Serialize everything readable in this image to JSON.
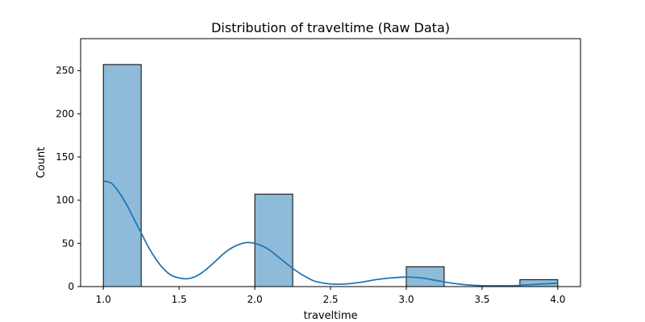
{
  "chart_data": {
    "type": "bar",
    "title": "Distribution of traveltime (Raw Data)",
    "xlabel": "traveltime",
    "ylabel": "Count",
    "xlim": [
      0.85,
      4.15
    ],
    "ylim": [
      0,
      287
    ],
    "grid": false,
    "x_ticks": [
      "1.0",
      "1.5",
      "2.0",
      "2.5",
      "3.0",
      "3.5",
      "4.0"
    ],
    "y_ticks": [
      "0",
      "50",
      "100",
      "150",
      "200",
      "250"
    ],
    "bins": [
      {
        "x0": 1.0,
        "x1": 1.25,
        "count": 257
      },
      {
        "x0": 1.25,
        "x1": 1.5,
        "count": 0
      },
      {
        "x0": 1.5,
        "x1": 1.75,
        "count": 0
      },
      {
        "x0": 1.75,
        "x1": 2.0,
        "count": 0
      },
      {
        "x0": 2.0,
        "x1": 2.25,
        "count": 107
      },
      {
        "x0": 2.25,
        "x1": 2.5,
        "count": 0
      },
      {
        "x0": 2.5,
        "x1": 2.75,
        "count": 0
      },
      {
        "x0": 2.75,
        "x1": 3.0,
        "count": 0
      },
      {
        "x0": 3.0,
        "x1": 3.25,
        "count": 23
      },
      {
        "x0": 3.25,
        "x1": 3.5,
        "count": 0
      },
      {
        "x0": 3.5,
        "x1": 3.75,
        "count": 0
      },
      {
        "x0": 3.75,
        "x1": 4.0,
        "count": 8
      }
    ],
    "kde": {
      "x": [
        1.0,
        1.05,
        1.1,
        1.15,
        1.2,
        1.25,
        1.3,
        1.35,
        1.4,
        1.45,
        1.5,
        1.55,
        1.6,
        1.65,
        1.7,
        1.75,
        1.8,
        1.85,
        1.9,
        1.95,
        2.0,
        2.05,
        2.1,
        2.15,
        2.2,
        2.25,
        2.3,
        2.35,
        2.4,
        2.5,
        2.6,
        2.7,
        2.8,
        2.9,
        3.0,
        3.1,
        3.2,
        3.3,
        3.4,
        3.5,
        3.6,
        3.7,
        3.8,
        3.9,
        4.0
      ],
      "y": [
        122,
        120,
        110,
        96,
        79,
        62,
        45,
        31,
        20,
        13,
        10,
        9,
        11,
        16,
        23,
        31,
        39,
        45,
        49,
        51,
        50,
        47,
        42,
        35,
        28,
        21,
        15,
        10,
        6,
        3,
        3,
        5,
        8,
        10,
        11,
        10,
        7,
        4,
        2,
        1,
        1,
        1,
        2,
        3,
        4
      ]
    },
    "colors": {
      "bar_fill": "#8fbbda",
      "bar_edge": "#000000",
      "kde_line": "#1f77b4"
    }
  }
}
